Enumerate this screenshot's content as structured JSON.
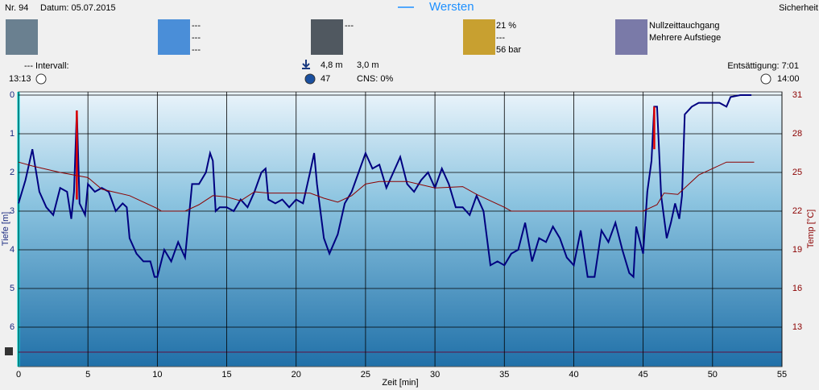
{
  "header": {
    "number": "Nr. 94",
    "date": "Datum: 05.07.2015",
    "site": "Wersten",
    "right": "Sicherheit",
    "weather": [
      "---",
      "---",
      "---"
    ],
    "equipment": [
      "---"
    ],
    "gas": [
      "21 %",
      "---",
      "56 bar"
    ],
    "dive_type": [
      "Nullzeittauchgang",
      "Mehrere Aufstiege"
    ],
    "interval_label": "--- Intervall:",
    "start_time": "13:13",
    "max_depth": "4,8 m",
    "avg_depth": "3,0 m",
    "duration": "47",
    "cns": "CNS: 0%",
    "desat": "Entsättigung: 7:01",
    "end_time": "14:00"
  },
  "chart_data": {
    "type": "line",
    "xlabel": "Zeit [min]",
    "ylabel": "Tiefe [m]",
    "y2label": "Temp [°C]",
    "xlim": [
      0,
      55
    ],
    "xticks": [
      0,
      5,
      10,
      15,
      20,
      25,
      30,
      35,
      40,
      45,
      50,
      55
    ],
    "ylim": [
      7,
      0
    ],
    "yticks": [
      0,
      1,
      2,
      3,
      4,
      5,
      6
    ],
    "y2lim": [
      10,
      31
    ],
    "y2ticks": [
      13,
      16,
      19,
      22,
      25,
      28,
      31
    ],
    "grid": true,
    "series": [
      {
        "name": "Tiefe",
        "color": "#000080",
        "x": [
          0,
          0.5,
          1,
          1.5,
          2,
          2.5,
          3,
          3.5,
          3.8,
          4,
          4.2,
          4.4,
          4.8,
          5,
          5.5,
          6,
          6.5,
          7,
          7.5,
          7.8,
          8,
          8.5,
          9,
          9.5,
          9.8,
          10,
          10.5,
          11,
          11.5,
          12,
          12.5,
          13,
          13.5,
          13.8,
          14,
          14.2,
          14.5,
          15,
          15.5,
          16,
          16.5,
          17,
          17.5,
          17.8,
          18,
          18.5,
          19,
          19.5,
          20,
          20.5,
          21,
          21.3,
          21.5,
          22,
          22.4,
          23,
          23.5,
          24,
          24.5,
          25,
          25.5,
          26,
          26.5,
          27,
          27.5,
          28,
          28.5,
          29,
          29.5,
          30,
          30.5,
          31,
          31.5,
          32,
          32.5,
          33,
          33.5,
          34,
          34.5,
          35,
          35.5,
          36,
          36.5,
          37,
          37.5,
          38,
          38.5,
          39,
          39.5,
          40,
          40.5,
          41,
          41.5,
          42,
          42.5,
          43,
          43.5,
          44,
          44.3,
          44.5,
          45,
          45.3,
          45.6,
          45.8,
          46,
          46.3,
          46.7,
          47,
          47.3,
          47.6,
          47.8,
          48,
          48.5,
          49,
          50,
          50.5,
          51,
          51.3,
          52,
          52.8
        ],
        "values": [
          2.8,
          2.2,
          1.4,
          2.5,
          2.9,
          3.1,
          2.4,
          2.5,
          3.2,
          2.5,
          0.4,
          2.8,
          3.1,
          2.3,
          2.5,
          2.4,
          2.5,
          3.0,
          2.8,
          2.9,
          3.7,
          4.1,
          4.3,
          4.3,
          4.7,
          4.7,
          4.0,
          4.3,
          3.8,
          4.2,
          2.3,
          2.3,
          2.0,
          1.5,
          1.7,
          3.0,
          2.9,
          2.9,
          3.0,
          2.7,
          2.9,
          2.5,
          2.0,
          1.9,
          2.7,
          2.8,
          2.7,
          2.9,
          2.7,
          2.8,
          2.0,
          1.5,
          2.3,
          3.7,
          4.1,
          3.6,
          2.8,
          2.5,
          2.0,
          1.5,
          1.9,
          1.8,
          2.4,
          2.0,
          1.6,
          2.3,
          2.5,
          2.2,
          2.0,
          2.4,
          1.9,
          2.3,
          2.9,
          2.9,
          3.1,
          2.6,
          3.0,
          4.4,
          4.3,
          4.4,
          4.1,
          4.0,
          3.3,
          4.3,
          3.7,
          3.8,
          3.4,
          3.7,
          4.2,
          4.4,
          3.5,
          4.7,
          4.7,
          3.5,
          3.8,
          3.3,
          4.0,
          4.6,
          4.7,
          3.4,
          4.1,
          2.5,
          1.7,
          0.3,
          0.3,
          2.6,
          3.7,
          3.3,
          2.8,
          3.2,
          2.6,
          0.5,
          0.3,
          0.2,
          0.2,
          0.2,
          0.3,
          0.05,
          0.0,
          0.0
        ]
      },
      {
        "name": "Temp",
        "color": "#8b0000",
        "axis": "y2",
        "x": [
          0,
          1,
          3,
          5,
          6,
          8,
          10,
          10.3,
          12,
          13,
          14,
          15,
          16,
          17,
          18,
          20,
          21,
          22,
          23,
          24,
          25,
          26,
          28,
          30,
          32,
          33,
          34,
          35,
          35.5,
          44,
          45,
          46,
          46.5,
          47.5,
          48,
          49,
          50,
          51,
          53
        ],
        "values": [
          25.8,
          25.5,
          25.0,
          24.6,
          23.7,
          23.2,
          22.2,
          22,
          22,
          22.5,
          23.2,
          23.1,
          22.8,
          23.5,
          23.4,
          23.4,
          23.4,
          23.0,
          22.7,
          23.2,
          24.1,
          24.3,
          24.3,
          23.8,
          23.9,
          23.3,
          22.8,
          22.3,
          22,
          22,
          22,
          22.5,
          23.4,
          23.3,
          23.8,
          24.8,
          25.3,
          25.8,
          25.8
        ]
      }
    ],
    "warnings": {
      "color": "#e00000",
      "x": [
        4.2,
        45.8
      ],
      "from": [
        0.4,
        0.3
      ],
      "to": [
        2.7,
        1.4
      ]
    }
  }
}
